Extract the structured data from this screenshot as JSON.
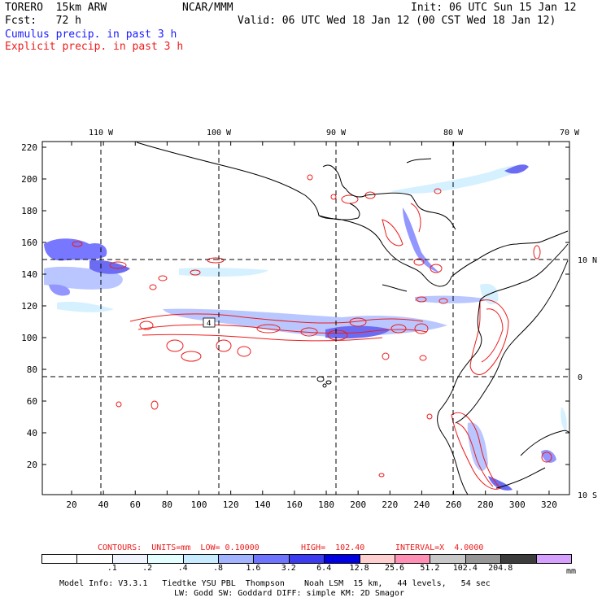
{
  "header": {
    "model": "TORERO  15km ARW",
    "org": "NCAR/MMM",
    "init": "Init: 06 UTC Sun 15 Jan 12",
    "fcst": "Fcst:   72 h",
    "valid": "Valid: 06 UTC Wed 18 Jan 12 (00 CST Wed 18 Jan 12)",
    "line_blue": "Cumulus precip. in past 3 h",
    "line_red": "Explicit precip. in past 3 h",
    "blue_color": "#1a1aff",
    "red_color": "#ee1c1c"
  },
  "map": {
    "lon_labels": [
      "110 W",
      "100 W",
      "90 W",
      "80 W",
      "70 W"
    ],
    "lat_labels": [
      "10 N",
      "0",
      "10 S"
    ],
    "y_ticks": [
      "220",
      "200",
      "180",
      "160",
      "140",
      "120",
      "100",
      "80",
      "60",
      "40",
      "20"
    ],
    "x_ticks": [
      "20",
      "40",
      "60",
      "80",
      "100",
      "120",
      "140",
      "160",
      "180",
      "200",
      "220",
      "240",
      "260",
      "280",
      "300",
      "320"
    ],
    "box_label": "4"
  },
  "contours_line": {
    "contours": "CONTOURS:  UNITS=mm  LOW= 0.10000",
    "high": "HIGH=  102.40",
    "interval": "INTERVAL=X  4.0000"
  },
  "colorbar": {
    "colors": [
      "#ffffff",
      "#ffffff",
      "#f0f4ff",
      "#e4ffff",
      "#c7ecff",
      "#a2b4ff",
      "#6f74ff",
      "#3b3bf0",
      "#0000e0",
      "#ffcfcf",
      "#ff8fb4",
      "#c8c8c8",
      "#969696",
      "#3c3c3c",
      "#d6a0ff"
    ],
    "labels": [
      ".1",
      ".2",
      ".4",
      ".8",
      "1.6",
      "3.2",
      "6.4",
      "12.8",
      "25.6",
      "51.2",
      "102.4",
      "204.8"
    ],
    "unit": "mm"
  },
  "footer": {
    "line1": "Model Info: V3.3.1   Tiedtke YSU PBL  Thompson    Noah LSM  15 km,   44 levels,   54 sec",
    "line2": "LW: Godd SW: Goddard DIFF: simple KM: 2D Smagor"
  }
}
